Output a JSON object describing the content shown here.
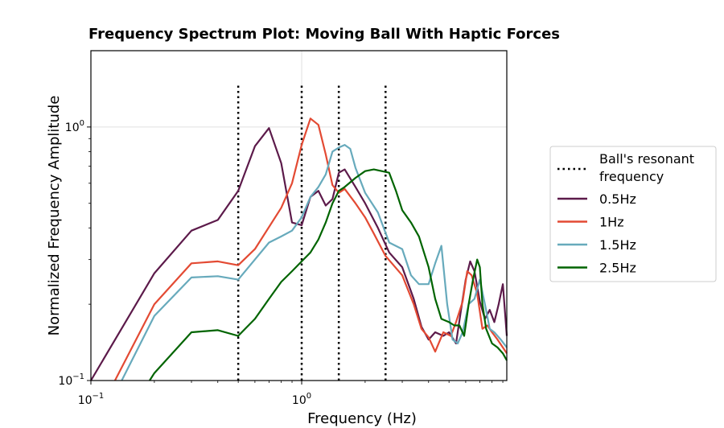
{
  "chart_data": {
    "type": "line",
    "title": "Frequency Spectrum Plot: Moving Ball With Haptic Forces",
    "xlabel": "Frequency (Hz)",
    "ylabel": "Normalized Frequency Amplitude",
    "xscale": "log",
    "yscale": "log",
    "xlim": [
      0.1,
      9.4
    ],
    "ylim": [
      0.1,
      2.0
    ],
    "xticks": [
      {
        "value": 0.1,
        "base": "10",
        "exp": "−1"
      },
      {
        "value": 1,
        "base": "10",
        "exp": "0"
      }
    ],
    "yticks": [
      {
        "value": 0.1,
        "base": "10",
        "exp": "−1"
      },
      {
        "value": 1,
        "base": "10",
        "exp": "0"
      }
    ],
    "grid": true,
    "legend_position": "right, outside plot",
    "resonance": {
      "name": "Ball's resonant frequency",
      "legend_lines": [
        "Ball's resonant",
        "frequency"
      ],
      "color": "#000000",
      "x": [
        0.5,
        1.0,
        1.5,
        2.5
      ],
      "y_top": 1.48
    },
    "series": [
      {
        "name": "0.5Hz",
        "color": "#5c1a4a",
        "points": [
          [
            0.1,
            0.1
          ],
          [
            0.2,
            0.265
          ],
          [
            0.3,
            0.39
          ],
          [
            0.4,
            0.43
          ],
          [
            0.5,
            0.56
          ],
          [
            0.6,
            0.84
          ],
          [
            0.7,
            0.99
          ],
          [
            0.8,
            0.72
          ],
          [
            0.9,
            0.42
          ],
          [
            1.0,
            0.41
          ],
          [
            1.1,
            0.53
          ],
          [
            1.2,
            0.56
          ],
          [
            1.3,
            0.49
          ],
          [
            1.4,
            0.52
          ],
          [
            1.5,
            0.66
          ],
          [
            1.6,
            0.68
          ],
          [
            1.8,
            0.58
          ],
          [
            2.0,
            0.5
          ],
          [
            2.3,
            0.4
          ],
          [
            2.6,
            0.32
          ],
          [
            3.0,
            0.28
          ],
          [
            3.4,
            0.21
          ],
          [
            3.7,
            0.163
          ],
          [
            4.0,
            0.145
          ],
          [
            4.3,
            0.155
          ],
          [
            4.7,
            0.15
          ],
          [
            5.0,
            0.155
          ],
          [
            5.4,
            0.14
          ],
          [
            5.7,
            0.19
          ],
          [
            6.0,
            0.25
          ],
          [
            6.3,
            0.295
          ],
          [
            6.6,
            0.27
          ],
          [
            7.0,
            0.205
          ],
          [
            7.4,
            0.175
          ],
          [
            7.8,
            0.19
          ],
          [
            8.2,
            0.17
          ],
          [
            8.6,
            0.2
          ],
          [
            9.0,
            0.24
          ],
          [
            9.4,
            0.15
          ]
        ]
      },
      {
        "name": "1Hz",
        "color": "#e34a33",
        "points": [
          [
            0.13,
            0.1
          ],
          [
            0.2,
            0.2
          ],
          [
            0.3,
            0.29
          ],
          [
            0.4,
            0.295
          ],
          [
            0.5,
            0.285
          ],
          [
            0.6,
            0.33
          ],
          [
            0.8,
            0.48
          ],
          [
            0.9,
            0.6
          ],
          [
            1.0,
            0.85
          ],
          [
            1.1,
            1.08
          ],
          [
            1.2,
            1.02
          ],
          [
            1.3,
            0.78
          ],
          [
            1.4,
            0.59
          ],
          [
            1.5,
            0.55
          ],
          [
            1.6,
            0.57
          ],
          [
            1.8,
            0.5
          ],
          [
            2.0,
            0.44
          ],
          [
            2.2,
            0.38
          ],
          [
            2.5,
            0.31
          ],
          [
            3.0,
            0.26
          ],
          [
            3.4,
            0.2
          ],
          [
            3.7,
            0.16
          ],
          [
            4.0,
            0.148
          ],
          [
            4.3,
            0.13
          ],
          [
            4.7,
            0.155
          ],
          [
            5.1,
            0.15
          ],
          [
            5.4,
            0.17
          ],
          [
            5.8,
            0.205
          ],
          [
            6.1,
            0.27
          ],
          [
            6.4,
            0.26
          ],
          [
            6.8,
            0.22
          ],
          [
            7.2,
            0.16
          ],
          [
            7.6,
            0.165
          ],
          [
            8.0,
            0.155
          ],
          [
            8.5,
            0.145
          ],
          [
            9.0,
            0.135
          ],
          [
            9.4,
            0.128
          ]
        ]
      },
      {
        "name": "1.5Hz",
        "color": "#67aabc",
        "points": [
          [
            0.14,
            0.1
          ],
          [
            0.2,
            0.18
          ],
          [
            0.3,
            0.255
          ],
          [
            0.4,
            0.258
          ],
          [
            0.5,
            0.25
          ],
          [
            0.6,
            0.3
          ],
          [
            0.7,
            0.35
          ],
          [
            0.8,
            0.37
          ],
          [
            0.9,
            0.39
          ],
          [
            1.0,
            0.44
          ],
          [
            1.1,
            0.53
          ],
          [
            1.2,
            0.58
          ],
          [
            1.3,
            0.65
          ],
          [
            1.4,
            0.8
          ],
          [
            1.5,
            0.83
          ],
          [
            1.6,
            0.85
          ],
          [
            1.7,
            0.82
          ],
          [
            1.8,
            0.69
          ],
          [
            2.0,
            0.55
          ],
          [
            2.3,
            0.46
          ],
          [
            2.6,
            0.35
          ],
          [
            3.0,
            0.33
          ],
          [
            3.3,
            0.26
          ],
          [
            3.6,
            0.24
          ],
          [
            4.0,
            0.24
          ],
          [
            4.3,
            0.29
          ],
          [
            4.6,
            0.34
          ],
          [
            4.9,
            0.2
          ],
          [
            5.2,
            0.145
          ],
          [
            5.5,
            0.14
          ],
          [
            5.8,
            0.155
          ],
          [
            6.2,
            0.2
          ],
          [
            6.6,
            0.21
          ],
          [
            7.0,
            0.25
          ],
          [
            7.4,
            0.2
          ],
          [
            7.8,
            0.16
          ],
          [
            8.2,
            0.155
          ],
          [
            8.8,
            0.145
          ],
          [
            9.4,
            0.135
          ]
        ]
      },
      {
        "name": "2.5Hz",
        "color": "#006400",
        "points": [
          [
            0.19,
            0.1
          ],
          [
            0.2,
            0.107
          ],
          [
            0.3,
            0.155
          ],
          [
            0.4,
            0.158
          ],
          [
            0.5,
            0.15
          ],
          [
            0.6,
            0.175
          ],
          [
            0.7,
            0.21
          ],
          [
            0.8,
            0.245
          ],
          [
            0.9,
            0.27
          ],
          [
            1.0,
            0.295
          ],
          [
            1.1,
            0.32
          ],
          [
            1.2,
            0.36
          ],
          [
            1.3,
            0.42
          ],
          [
            1.4,
            0.5
          ],
          [
            1.5,
            0.56
          ],
          [
            1.6,
            0.58
          ],
          [
            1.8,
            0.63
          ],
          [
            2.0,
            0.67
          ],
          [
            2.2,
            0.68
          ],
          [
            2.4,
            0.67
          ],
          [
            2.6,
            0.66
          ],
          [
            2.8,
            0.56
          ],
          [
            3.0,
            0.47
          ],
          [
            3.3,
            0.42
          ],
          [
            3.6,
            0.37
          ],
          [
            4.0,
            0.28
          ],
          [
            4.3,
            0.21
          ],
          [
            4.6,
            0.175
          ],
          [
            5.0,
            0.17
          ],
          [
            5.3,
            0.165
          ],
          [
            5.6,
            0.165
          ],
          [
            5.9,
            0.15
          ],
          [
            6.2,
            0.2
          ],
          [
            6.5,
            0.25
          ],
          [
            6.8,
            0.3
          ],
          [
            7.0,
            0.28
          ],
          [
            7.2,
            0.2
          ],
          [
            7.5,
            0.16
          ],
          [
            8.0,
            0.14
          ],
          [
            8.5,
            0.135
          ],
          [
            9.0,
            0.128
          ],
          [
            9.4,
            0.12
          ]
        ]
      }
    ]
  }
}
